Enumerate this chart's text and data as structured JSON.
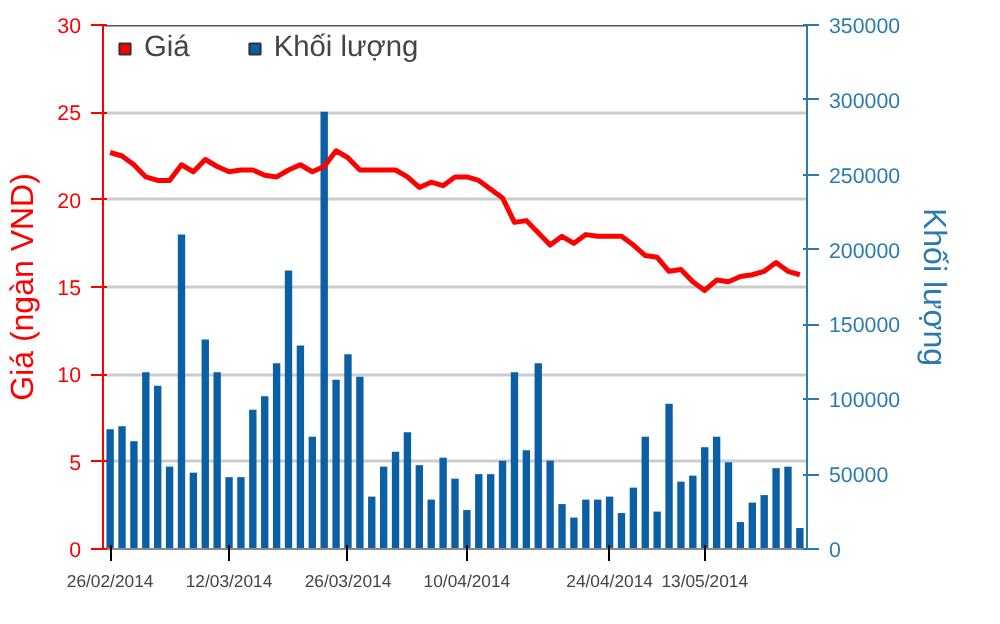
{
  "chart_data": {
    "type": "bar",
    "categories": [
      "26/02/2014",
      null,
      null,
      null,
      null,
      null,
      null,
      null,
      null,
      null,
      "12/03/2014",
      null,
      null,
      null,
      null,
      null,
      null,
      null,
      null,
      null,
      "26/03/2014",
      null,
      null,
      null,
      null,
      null,
      null,
      null,
      null,
      null,
      "10/04/2014",
      null,
      null,
      null,
      null,
      null,
      null,
      null,
      null,
      null,
      null,
      null,
      "24/04/2014",
      null,
      null,
      null,
      null,
      null,
      null,
      null,
      "13/05/2014",
      null,
      null,
      null,
      null,
      null,
      null,
      null,
      null
    ],
    "series": [
      {
        "name": "Giá",
        "type": "line",
        "color": "#ff0000",
        "values": [
          22.7,
          22.5,
          22.0,
          21.3,
          21.1,
          21.1,
          22.0,
          21.6,
          22.3,
          21.9,
          21.6,
          21.7,
          21.7,
          21.4,
          21.3,
          21.7,
          22.0,
          21.6,
          21.9,
          22.8,
          22.4,
          21.7,
          21.7,
          21.7,
          21.7,
          21.3,
          20.7,
          21.0,
          20.8,
          21.3,
          21.3,
          21.1,
          20.6,
          20.1,
          18.7,
          18.8,
          18.1,
          17.4,
          17.9,
          17.5,
          18.0,
          17.9,
          17.9,
          17.9,
          17.4,
          16.8,
          16.7,
          15.9,
          16.0,
          15.3,
          14.8,
          15.4,
          15.3,
          15.6,
          15.7,
          15.9,
          16.4,
          15.9,
          15.7
        ]
      },
      {
        "name": "Khối lượng",
        "axis": "y2",
        "color": "#0b5fa5",
        "values": [
          80000,
          82000,
          72000,
          118000,
          109000,
          55000,
          210000,
          51000,
          140000,
          118000,
          48000,
          48000,
          93000,
          102000,
          124000,
          186000,
          136000,
          75000,
          292000,
          113000,
          130000,
          115000,
          35000,
          55000,
          65000,
          78000,
          56000,
          33000,
          61000,
          47000,
          26000,
          50000,
          50000,
          59000,
          118000,
          66000,
          124000,
          59000,
          30000,
          21000,
          33000,
          33000,
          35000,
          24000,
          41000,
          75000,
          25000,
          97000,
          45000,
          49000,
          68000,
          75000,
          58000,
          18000,
          31000,
          36000,
          54000,
          55000,
          14000
        ]
      }
    ],
    "ylabel": "Giá (ngàn VND)",
    "y2label": "Khối lượng",
    "ylim": [
      0,
      30
    ],
    "yticks": [
      0,
      5,
      10,
      15,
      20,
      25,
      30
    ],
    "y2lim": [
      0,
      350000
    ],
    "y2ticks": [
      0,
      50000,
      100000,
      150000,
      200000,
      250000,
      300000,
      350000
    ],
    "grid": "y",
    "legend": "top left"
  }
}
